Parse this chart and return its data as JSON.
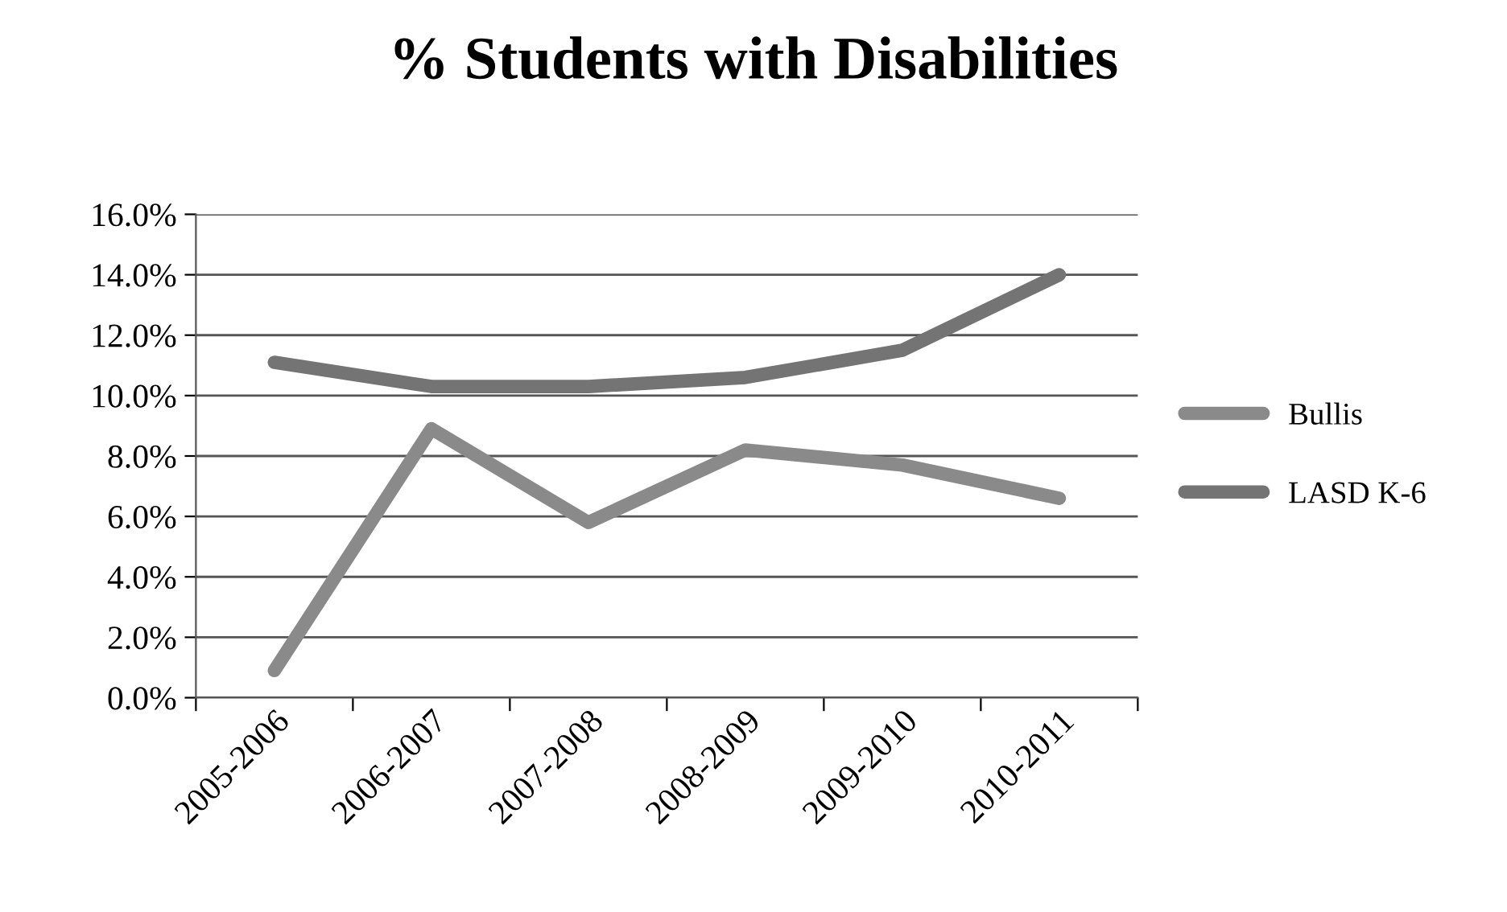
{
  "chart_data": {
    "type": "line",
    "title": "% Students with Disabilities",
    "categories": [
      "2005-2006",
      "2006-2007",
      "2007-2008",
      "2008-2009",
      "2009-2010",
      "2010-2011"
    ],
    "series": [
      {
        "name": "Bullis",
        "color": "#8a8a8a",
        "values": [
          0.9,
          8.9,
          5.8,
          8.2,
          7.7,
          6.6
        ]
      },
      {
        "name": "LASD K-6",
        "color": "#747474",
        "values": [
          11.1,
          10.3,
          10.3,
          10.6,
          11.5,
          14.0
        ]
      }
    ],
    "ylim": [
      0,
      16
    ],
    "yticks": [
      {
        "value": 0,
        "label": "0.0%"
      },
      {
        "value": 2,
        "label": "2.0%"
      },
      {
        "value": 4,
        "label": "4.0%"
      },
      {
        "value": 6,
        "label": "6.0%"
      },
      {
        "value": 8,
        "label": "8.0%"
      },
      {
        "value": 10,
        "label": "10.0%"
      },
      {
        "value": 12,
        "label": "12.0%"
      },
      {
        "value": 14,
        "label": "14.0%"
      },
      {
        "value": 16,
        "label": "16.0%"
      }
    ],
    "grid": "y",
    "legend": "right",
    "marker": "none",
    "line_style": "solid"
  }
}
